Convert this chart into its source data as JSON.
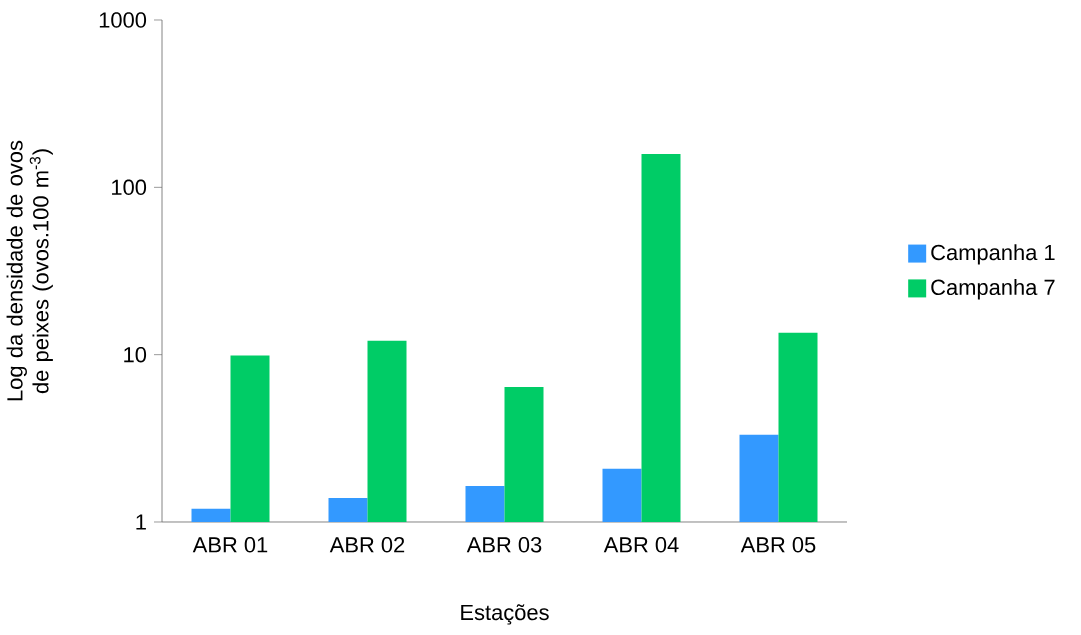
{
  "chart_data": {
    "type": "bar",
    "xlabel": "Estações",
    "ylabel": "Log da densidade de ovos de peixes (ovos.100 m$^{-3}$)",
    "categories": [
      "ABR 01",
      "ABR 02",
      "ABR 03",
      "ABR 04",
      "ABR 05"
    ],
    "series": [
      {
        "name": "Campanha 1",
        "color": "#3399ff",
        "values": [
          1.2,
          1.39,
          1.64,
          2.08,
          3.32
        ]
      },
      {
        "name": "Campanha 7",
        "color": "#00cc66",
        "values": [
          9.9,
          12.1,
          6.4,
          158,
          13.5
        ]
      }
    ],
    "log": "y",
    "ylim": [
      1,
      1000
    ],
    "yticks": [
      1,
      10,
      100,
      1000
    ],
    "grid": false,
    "legend": "right"
  }
}
